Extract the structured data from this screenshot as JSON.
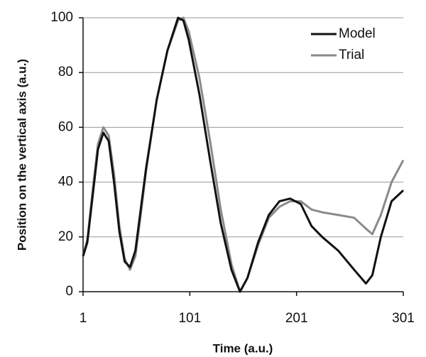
{
  "chart_data": {
    "type": "line",
    "x_label": "Time (a.u.)",
    "y_label": "Position on the vertical axis (a.u.)",
    "x": [
      1,
      5,
      10,
      15,
      20,
      25,
      30,
      35,
      40,
      45,
      50,
      55,
      60,
      70,
      80,
      90,
      95,
      100,
      110,
      120,
      130,
      140,
      148,
      155,
      165,
      175,
      185,
      195,
      205,
      215,
      225,
      240,
      255,
      266,
      272,
      280,
      290,
      301
    ],
    "series": [
      {
        "name": "Model",
        "color": "#111111",
        "values": [
          13,
          18,
          35,
          52,
          58,
          55,
          40,
          22,
          11,
          9,
          15,
          30,
          45,
          70,
          88,
          100,
          99,
          92,
          72,
          48,
          25,
          8,
          0,
          5,
          18,
          28,
          33,
          34,
          32,
          24,
          20,
          15,
          8,
          3,
          6,
          20,
          33,
          37
        ]
      },
      {
        "name": "Trial",
        "color": "#8a8a8a",
        "values": [
          13,
          19,
          37,
          54,
          60,
          57,
          43,
          24,
          12,
          8,
          13,
          28,
          44,
          70,
          88,
          99,
          100,
          95,
          78,
          55,
          30,
          10,
          0,
          5,
          17,
          27,
          31,
          33,
          33,
          30,
          29,
          28,
          27,
          23,
          21,
          28,
          40,
          48
        ]
      }
    ],
    "xlim": [
      1,
      301
    ],
    "xticks": [
      1,
      101,
      201,
      301
    ],
    "ylim": [
      0,
      100
    ],
    "yticks": [
      0,
      20,
      40,
      60,
      80,
      100
    ],
    "grid": true,
    "legend": "top-right"
  }
}
